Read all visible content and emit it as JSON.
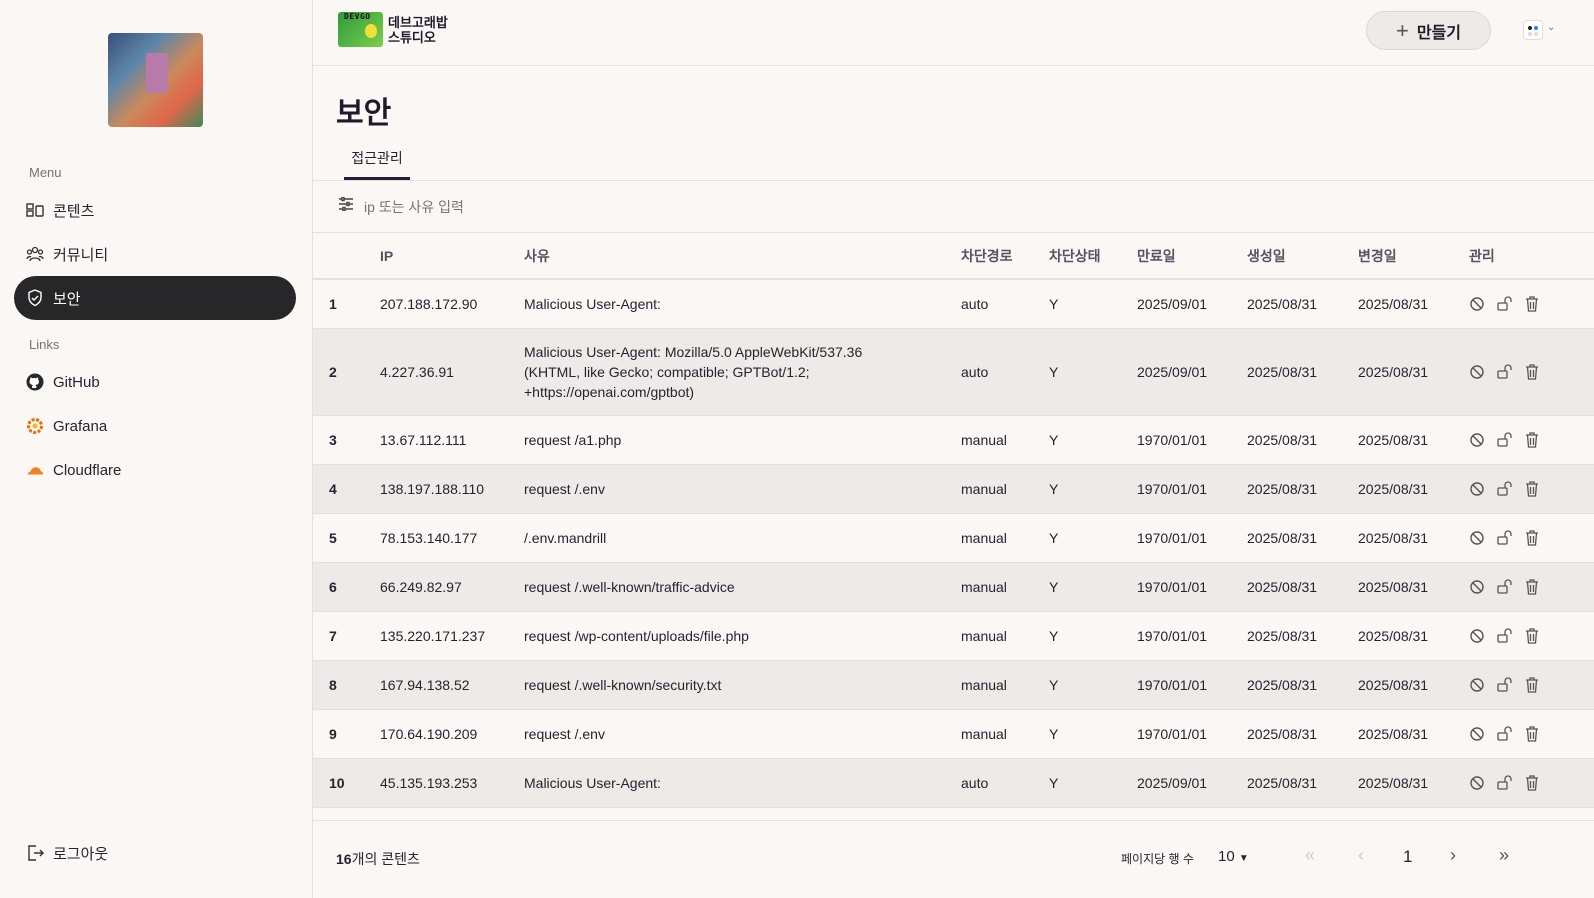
{
  "sidebar": {
    "menu_label": "Menu",
    "links_label": "Links",
    "menu": [
      {
        "label": "콘텐츠",
        "icon": "content-icon"
      },
      {
        "label": "커뮤니티",
        "icon": "community-icon"
      },
      {
        "label": "보안",
        "icon": "shield-icon",
        "active": true
      }
    ],
    "links": [
      {
        "label": "GitHub",
        "icon": "github-icon"
      },
      {
        "label": "Grafana",
        "icon": "grafana-icon"
      },
      {
        "label": "Cloudflare",
        "icon": "cloudflare-icon"
      }
    ],
    "logout": "로그아웃"
  },
  "header": {
    "brand_line1": "데브고래밥",
    "brand_line2": "스튜디오",
    "brand_logo_text": "DEVGO",
    "create_label": "만들기"
  },
  "page": {
    "title": "보안",
    "tabs": [
      "접근관리"
    ],
    "search_placeholder": "ip 또는 사유 입력"
  },
  "table": {
    "columns": [
      "",
      "IP",
      "사유",
      "차단경로",
      "차단상태",
      "만료일",
      "생성일",
      "변경일",
      "관리"
    ],
    "rows": [
      [
        "1",
        "207.188.172.90",
        "Malicious User-Agent:",
        "auto",
        "Y",
        "2025/09/01",
        "2025/08/31",
        "2025/08/31"
      ],
      [
        "2",
        "4.227.36.91",
        "Malicious User-Agent: Mozilla/5.0 AppleWebKit/537.36 (KHTML, like Gecko; compatible; GPTBot/1.2; +https://openai.com/gptbot)",
        "auto",
        "Y",
        "2025/09/01",
        "2025/08/31",
        "2025/08/31"
      ],
      [
        "3",
        "13.67.112.111",
        "request /a1.php",
        "manual",
        "Y",
        "1970/01/01",
        "2025/08/31",
        "2025/08/31"
      ],
      [
        "4",
        "138.197.188.110",
        "request /.env",
        "manual",
        "Y",
        "1970/01/01",
        "2025/08/31",
        "2025/08/31"
      ],
      [
        "5",
        "78.153.140.177",
        "/.env.mandrill",
        "manual",
        "Y",
        "1970/01/01",
        "2025/08/31",
        "2025/08/31"
      ],
      [
        "6",
        "66.249.82.97",
        "request /.well-known/traffic-advice",
        "manual",
        "Y",
        "1970/01/01",
        "2025/08/31",
        "2025/08/31"
      ],
      [
        "7",
        "135.220.171.237",
        "request /wp-content/uploads/file.php",
        "manual",
        "Y",
        "1970/01/01",
        "2025/08/31",
        "2025/08/31"
      ],
      [
        "8",
        "167.94.138.52",
        "request /.well-known/security.txt",
        "manual",
        "Y",
        "1970/01/01",
        "2025/08/31",
        "2025/08/31"
      ],
      [
        "9",
        "170.64.190.209",
        "request /.env",
        "manual",
        "Y",
        "1970/01/01",
        "2025/08/31",
        "2025/08/31"
      ],
      [
        "10",
        "45.135.193.253",
        "Malicious User-Agent:",
        "auto",
        "Y",
        "2025/09/01",
        "2025/08/31",
        "2025/08/31"
      ]
    ]
  },
  "footer": {
    "count_num": "16",
    "count_suffix": "개의 콘텐츠",
    "rows_per_page_label": "페이지당 행 수",
    "rows_per_page": "10",
    "current_page": "1"
  }
}
